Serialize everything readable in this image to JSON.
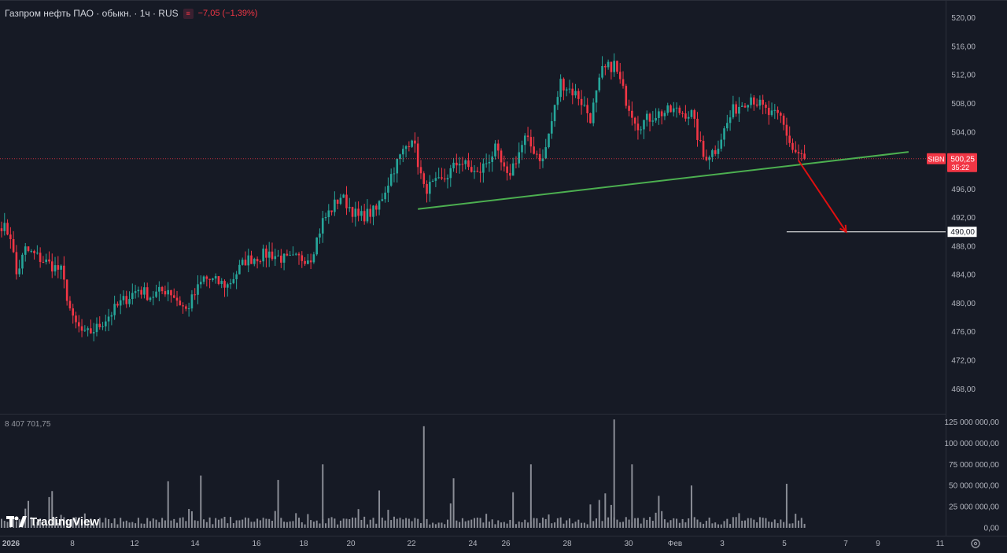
{
  "header": {
    "title": "Газпром нефть ПАО · обыкн. · 1ч · RUS",
    "change": "−7,05 (−1,39%)"
  },
  "volume_label": "8 407 701,75",
  "brand": "TradingView",
  "colors": {
    "background": "#161a25",
    "up": "#26a69a",
    "down": "#f23645",
    "support_line": "#4caf50",
    "target_line": "#ffffff",
    "arrow": "#e01010",
    "volume": "#8a8d96"
  },
  "chart_data": {
    "type": "candlestick",
    "symbol": "SIBN",
    "timeframe": "1ч",
    "last_price": "500,25",
    "countdown": "35:22",
    "target_price": "490,00",
    "y_ticks": [
      "520,00",
      "516,00",
      "512,00",
      "508,00",
      "504,00",
      "500,00",
      "496,00",
      "492,00",
      "488,00",
      "484,00",
      "480,00",
      "476,00",
      "472,00",
      "468,00"
    ],
    "y_tick_values": [
      520,
      516,
      512,
      508,
      504,
      500,
      496,
      492,
      488,
      484,
      480,
      476,
      472,
      468
    ],
    "ylim": [
      464.5,
      522.5
    ],
    "x_tick_labels": [
      "2026",
      "8",
      "12",
      "14",
      "16",
      "18",
      "20",
      "22",
      "24",
      "26",
      "28",
      "30",
      "Фев",
      "3",
      "5",
      "7",
      "9",
      "11"
    ],
    "volume_ticks": [
      "125 000 000,00",
      "100 000 000,00",
      "75 000 000,00",
      "50 000 000,00",
      "25 000 000,00",
      "0,00"
    ],
    "volume_tick_values": [
      125000000,
      100000000,
      75000000,
      50000000,
      25000000,
      0
    ],
    "price_path": [
      {
        "i": 0,
        "p": 491.0
      },
      {
        "i": 3,
        "p": 489.5
      },
      {
        "i": 5,
        "p": 484.0
      },
      {
        "i": 8,
        "p": 487.5
      },
      {
        "i": 14,
        "p": 486.0
      },
      {
        "i": 20,
        "p": 484.5
      },
      {
        "i": 24,
        "p": 477.5
      },
      {
        "i": 28,
        "p": 475.5
      },
      {
        "i": 32,
        "p": 476.5
      },
      {
        "i": 40,
        "p": 480.0
      },
      {
        "i": 46,
        "p": 482.0
      },
      {
        "i": 50,
        "p": 481.0
      },
      {
        "i": 56,
        "p": 482.0
      },
      {
        "i": 62,
        "p": 479.0
      },
      {
        "i": 68,
        "p": 483.5
      },
      {
        "i": 76,
        "p": 482.5
      },
      {
        "i": 82,
        "p": 486.0
      },
      {
        "i": 90,
        "p": 487.0
      },
      {
        "i": 96,
        "p": 486.0
      },
      {
        "i": 104,
        "p": 486.5
      },
      {
        "i": 108,
        "p": 491.5
      },
      {
        "i": 114,
        "p": 495.0
      },
      {
        "i": 120,
        "p": 492.0
      },
      {
        "i": 126,
        "p": 493.0
      },
      {
        "i": 132,
        "p": 499.0
      },
      {
        "i": 138,
        "p": 503.5
      },
      {
        "i": 142,
        "p": 496.0
      },
      {
        "i": 148,
        "p": 497.0
      },
      {
        "i": 154,
        "p": 500.0
      },
      {
        "i": 160,
        "p": 498.0
      },
      {
        "i": 166,
        "p": 501.5
      },
      {
        "i": 170,
        "p": 497.5
      },
      {
        "i": 176,
        "p": 503.0
      },
      {
        "i": 182,
        "p": 500.0
      },
      {
        "i": 188,
        "p": 511.0
      },
      {
        "i": 194,
        "p": 509.0
      },
      {
        "i": 198,
        "p": 506.0
      },
      {
        "i": 202,
        "p": 512.5
      },
      {
        "i": 206,
        "p": 513.5
      },
      {
        "i": 210,
        "p": 508.5
      },
      {
        "i": 214,
        "p": 505.0
      },
      {
        "i": 220,
        "p": 506.5
      },
      {
        "i": 226,
        "p": 507.0
      },
      {
        "i": 232,
        "p": 506.5
      },
      {
        "i": 236,
        "p": 500.5
      },
      {
        "i": 240,
        "p": 501.5
      },
      {
        "i": 246,
        "p": 507.0
      },
      {
        "i": 252,
        "p": 509.0
      },
      {
        "i": 258,
        "p": 506.5
      },
      {
        "i": 262,
        "p": 506.0
      },
      {
        "i": 266,
        "p": 501.5
      },
      {
        "i": 270,
        "p": 500.25
      }
    ],
    "support_line": {
      "from": {
        "i": 140,
        "p": 493.2
      },
      "to": {
        "i": 305,
        "p": 501.2
      }
    },
    "forecast_arrow": {
      "from": {
        "i": 268,
        "p": 500.0
      },
      "to": {
        "i": 284,
        "p": 490.0
      }
    },
    "target_line": {
      "from_i": 264,
      "p": 490.0
    }
  }
}
